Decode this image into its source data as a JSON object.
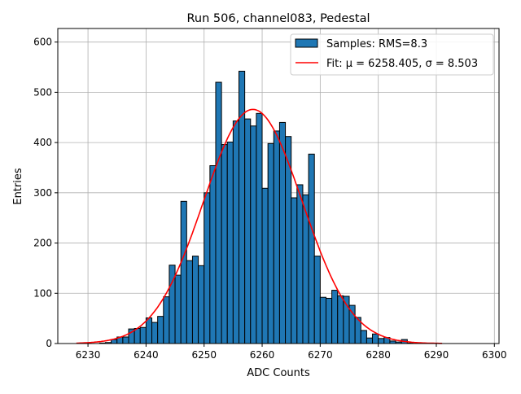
{
  "chart_data": {
    "type": "bar",
    "title": "Run 506, channel083, Pedestal",
    "xlabel": "ADC Counts",
    "ylabel": "Entries",
    "xlim": [
      6224.8,
      6300.8
    ],
    "ylim": [
      0,
      627
    ],
    "grid": true,
    "legend_placement": "top-right",
    "xticks": [
      6230,
      6240,
      6250,
      6260,
      6270,
      6280,
      6290,
      6300
    ],
    "yticks": [
      0,
      100,
      200,
      300,
      400,
      500,
      600
    ],
    "bin_width": 1,
    "bin_start": 6230,
    "values": [
      0,
      0,
      1,
      2,
      8,
      13,
      13,
      29,
      30,
      32,
      51,
      42,
      54,
      93,
      156,
      136,
      283,
      165,
      174,
      155,
      300,
      354,
      520,
      396,
      401,
      443,
      542,
      447,
      433,
      458,
      309,
      398,
      423,
      440,
      412,
      290,
      316,
      296,
      377,
      174,
      92,
      90,
      106,
      95,
      94,
      76,
      52,
      26,
      11,
      19,
      10,
      12,
      5,
      3,
      8,
      1
    ],
    "series": [
      {
        "name": "Samples: RMS=8.3",
        "type": "histogram",
        "color": "#1f77b4"
      },
      {
        "name": "Fit: μ = 6258.405, σ = 8.503",
        "type": "line",
        "color": "#ff0000",
        "mu": 6258.405,
        "sigma": 8.503,
        "amplitude": 466,
        "x_range": [
          6228,
          6291
        ]
      }
    ]
  }
}
